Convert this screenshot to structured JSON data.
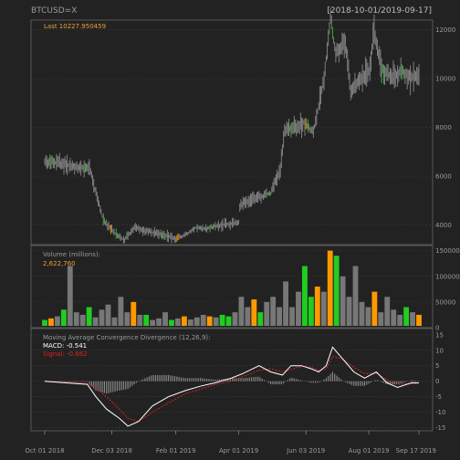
{
  "chart": {
    "symbol": "BTCUSD=X",
    "date_range": "[2018-10-01/2019-09-17]"
  },
  "chart_data": [
    {
      "type": "candlestick",
      "last_label": "Last 10227.950459",
      "ylim": [
        3200,
        12400
      ],
      "y_ticks": [
        "4000",
        "6000",
        "8000",
        "10000",
        "12000"
      ],
      "y_tick_values": [
        4000,
        6000,
        8000,
        10000,
        12000
      ],
      "colors": {
        "price": "#888888",
        "up": "#22cc22",
        "down": "#ff9900"
      },
      "x": [
        "2018-10-01",
        "2018-10-15",
        "2018-11-01",
        "2018-11-12",
        "2018-11-20",
        "2018-11-25",
        "2018-12-01",
        "2018-12-10",
        "2018-12-15",
        "2018-12-24",
        "2019-01-01",
        "2019-01-10",
        "2019-01-20",
        "2019-02-01",
        "2019-02-10",
        "2019-02-20",
        "2019-03-01",
        "2019-03-15",
        "2019-04-01",
        "2019-04-02",
        "2019-04-15",
        "2019-05-01",
        "2019-05-10",
        "2019-05-14",
        "2019-05-25",
        "2019-06-01",
        "2019-06-10",
        "2019-06-20",
        "2019-06-26",
        "2019-07-01",
        "2019-07-10",
        "2019-07-15",
        "2019-07-25",
        "2019-08-01",
        "2019-08-06",
        "2019-08-15",
        "2019-08-25",
        "2019-09-01",
        "2019-09-10",
        "2019-09-17"
      ],
      "close": [
        6600,
        6550,
        6350,
        6350,
        5000,
        4200,
        3900,
        3500,
        3400,
        3900,
        3800,
        3700,
        3600,
        3450,
        3600,
        3900,
        3850,
        4000,
        4100,
        4800,
        5100,
        5300,
        6300,
        7900,
        8000,
        8200,
        7800,
        10000,
        12500,
        11000,
        11500,
        9500,
        10000,
        10300,
        11800,
        10200,
        10100,
        10300,
        10000,
        10228
      ]
    },
    {
      "type": "bar",
      "title": "Volume (millions):",
      "current_value": "2,622,760",
      "ylim": [
        0,
        160000
      ],
      "y_ticks": [
        "0",
        "50000",
        "100000",
        "150000"
      ],
      "y_tick_values": [
        0,
        50000,
        100000,
        150000
      ],
      "values": [
        15000,
        18000,
        22000,
        35000,
        120000,
        30000,
        25000,
        40000,
        20000,
        35000,
        45000,
        20000,
        60000,
        30000,
        50000,
        25000,
        25000,
        15000,
        18000,
        30000,
        15000,
        18000,
        22000,
        16000,
        20000,
        25000,
        22000,
        20000,
        25000,
        22000,
        30000,
        60000,
        40000,
        55000,
        30000,
        50000,
        60000,
        40000,
        90000,
        40000,
        70000,
        120000,
        60000,
        80000,
        70000,
        150000,
        140000,
        100000,
        60000,
        120000,
        50000,
        40000,
        70000,
        30000,
        60000,
        35000,
        25000,
        40000,
        30000,
        25000
      ]
    },
    {
      "type": "line",
      "title": "Moving Average Convergence Divergence (12,26,9):",
      "macd_label": "MACD: -0.541",
      "signal_label": "Signal: -0.662",
      "ylim": [
        -16,
        17
      ],
      "y_ticks": [
        "-15",
        "-10",
        "-5",
        "0",
        "5",
        "10",
        "15"
      ],
      "y_tick_values": [
        -15,
        -10,
        -5,
        0,
        5,
        10,
        15
      ],
      "x_tick_labels": [
        "Oct 01 2018",
        "Dec 03 2018",
        "Feb 01 2019",
        "Apr 01 2019",
        "Jun 03 2019",
        "Aug 01 2019",
        "Sep 17 2019"
      ],
      "x_tick_dates": [
        "2018-10-01",
        "2018-12-03",
        "2019-02-01",
        "2019-04-01",
        "2019-06-03",
        "2019-08-01",
        "2019-09-17"
      ],
      "colors": {
        "macd": "#ffffff",
        "signal": "#e02020",
        "histogram": "#888888"
      },
      "x": [
        "2018-10-01",
        "2018-10-20",
        "2018-11-10",
        "2018-11-18",
        "2018-11-28",
        "2018-12-10",
        "2018-12-18",
        "2018-12-28",
        "2019-01-10",
        "2019-01-25",
        "2019-02-10",
        "2019-02-25",
        "2019-03-10",
        "2019-03-25",
        "2019-04-05",
        "2019-04-20",
        "2019-05-01",
        "2019-05-12",
        "2019-05-20",
        "2019-05-30",
        "2019-06-08",
        "2019-06-15",
        "2019-06-22",
        "2019-06-28",
        "2019-07-08",
        "2019-07-18",
        "2019-07-28",
        "2019-08-08",
        "2019-08-18",
        "2019-08-28",
        "2019-09-10",
        "2019-09-17"
      ],
      "macd": [
        0,
        -0.5,
        -1,
        -5,
        -9,
        -12,
        -14.5,
        -13,
        -8,
        -5,
        -3,
        -1.5,
        -0.5,
        1,
        2.5,
        5,
        3,
        2,
        5,
        5,
        4,
        3,
        5,
        11,
        7,
        3,
        1,
        3,
        -0.5,
        -2,
        -0.5,
        -0.541
      ],
      "signal": [
        0,
        -0.3,
        -0.8,
        -2,
        -5,
        -9,
        -12,
        -13,
        -10,
        -7,
        -4,
        -2.5,
        -1,
        0,
        1.5,
        3.5,
        4,
        3,
        3.8,
        4.8,
        4.5,
        3.5,
        4,
        8,
        7,
        4.5,
        2.5,
        2.5,
        0.5,
        -1,
        -0.8,
        -0.662
      ]
    }
  ]
}
